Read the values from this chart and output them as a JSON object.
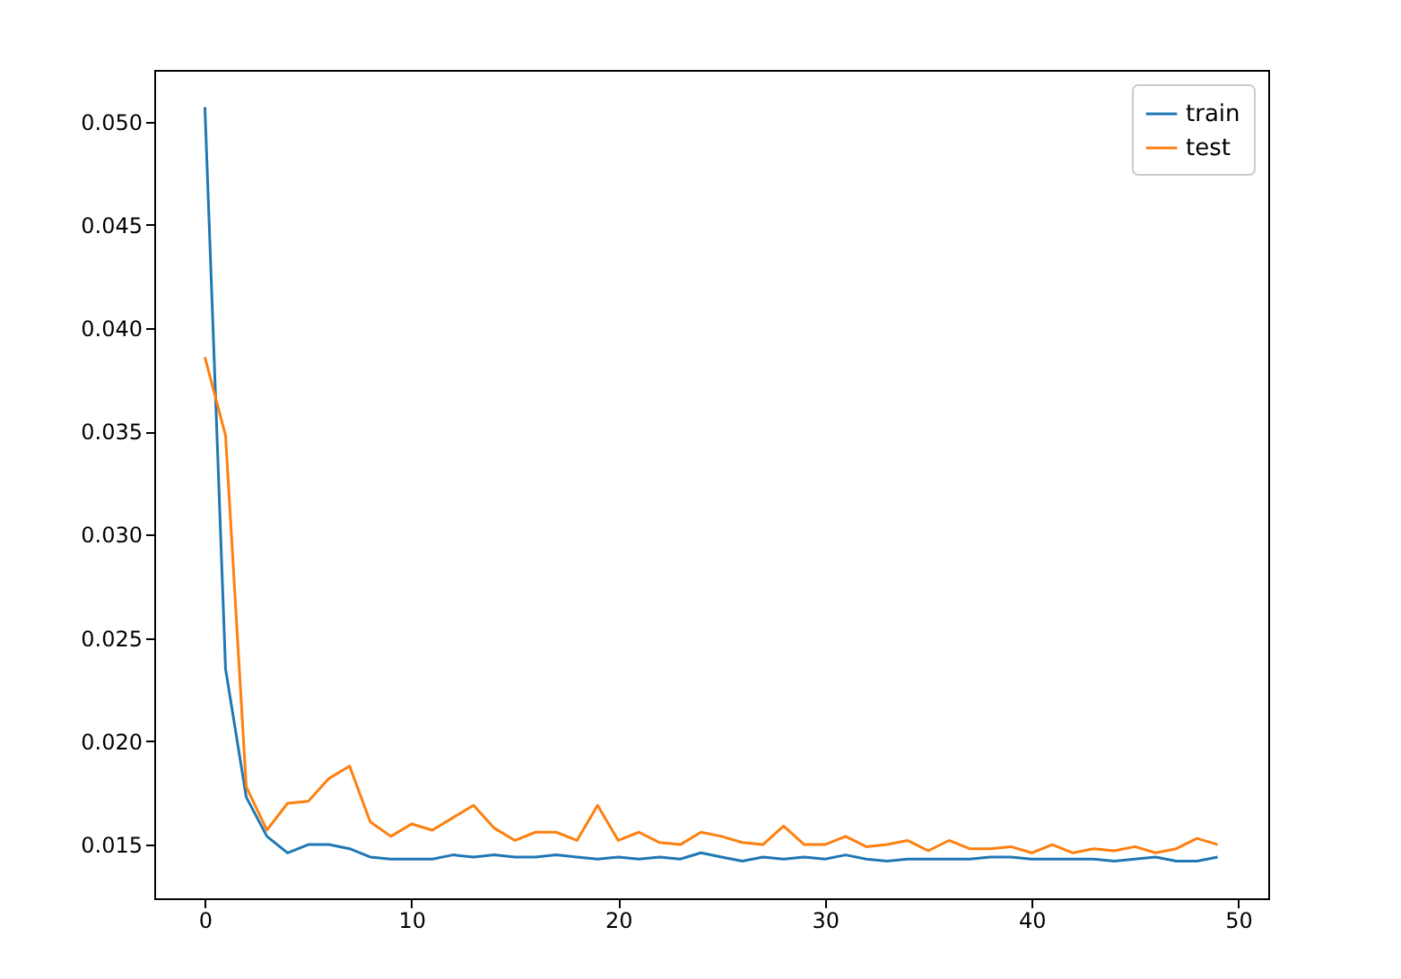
{
  "chart_data": {
    "type": "line",
    "x": [
      0,
      1,
      2,
      3,
      4,
      5,
      6,
      7,
      8,
      9,
      10,
      11,
      12,
      13,
      14,
      15,
      16,
      17,
      18,
      19,
      20,
      21,
      22,
      23,
      24,
      25,
      26,
      27,
      28,
      29,
      30,
      31,
      32,
      33,
      34,
      35,
      36,
      37,
      38,
      39,
      40,
      41,
      42,
      43,
      44,
      45,
      46,
      47,
      48,
      49
    ],
    "series": [
      {
        "name": "train",
        "color": "#1f77b4",
        "values": [
          0.0507,
          0.0235,
          0.0173,
          0.0154,
          0.0146,
          0.015,
          0.015,
          0.0148,
          0.0144,
          0.0143,
          0.0143,
          0.0143,
          0.0145,
          0.0144,
          0.0145,
          0.0144,
          0.0144,
          0.0145,
          0.0144,
          0.0143,
          0.0144,
          0.0143,
          0.0144,
          0.0143,
          0.0146,
          0.0144,
          0.0142,
          0.0144,
          0.0143,
          0.0144,
          0.0143,
          0.0145,
          0.0143,
          0.0142,
          0.0143,
          0.0143,
          0.0143,
          0.0143,
          0.0144,
          0.0144,
          0.0143,
          0.0143,
          0.0143,
          0.0143,
          0.0142,
          0.0143,
          0.0144,
          0.0142,
          0.0142,
          0.0144
        ]
      },
      {
        "name": "test",
        "color": "#ff7f0e",
        "values": [
          0.0386,
          0.0348,
          0.0178,
          0.0157,
          0.017,
          0.0171,
          0.0182,
          0.0188,
          0.0161,
          0.0154,
          0.016,
          0.0157,
          0.0163,
          0.0169,
          0.0158,
          0.0152,
          0.0156,
          0.0156,
          0.0152,
          0.0169,
          0.0152,
          0.0156,
          0.0151,
          0.015,
          0.0156,
          0.0154,
          0.0151,
          0.015,
          0.0159,
          0.015,
          0.015,
          0.0154,
          0.0149,
          0.015,
          0.0152,
          0.0147,
          0.0152,
          0.0148,
          0.0148,
          0.0149,
          0.0146,
          0.015,
          0.0146,
          0.0148,
          0.0147,
          0.0149,
          0.0146,
          0.0148,
          0.0153,
          0.015
        ]
      }
    ],
    "xlim": [
      -2.45,
      51.45
    ],
    "xticks": [
      0,
      10,
      20,
      30,
      40,
      50
    ],
    "ylim": [
      0.0124,
      0.0525
    ],
    "yticks": [
      0.015,
      {
        "value": 0.02,
        "label": "0.020"
      },
      0.025,
      {
        "value": 0.03,
        "label": "0.030"
      },
      0.035,
      {
        "value": 0.04,
        "label": "0.040"
      },
      0.045,
      {
        "value": 0.05,
        "label": "0.050"
      }
    ],
    "legend": "top right",
    "grid": false,
    "marker": "none",
    "line_style": "solid"
  }
}
